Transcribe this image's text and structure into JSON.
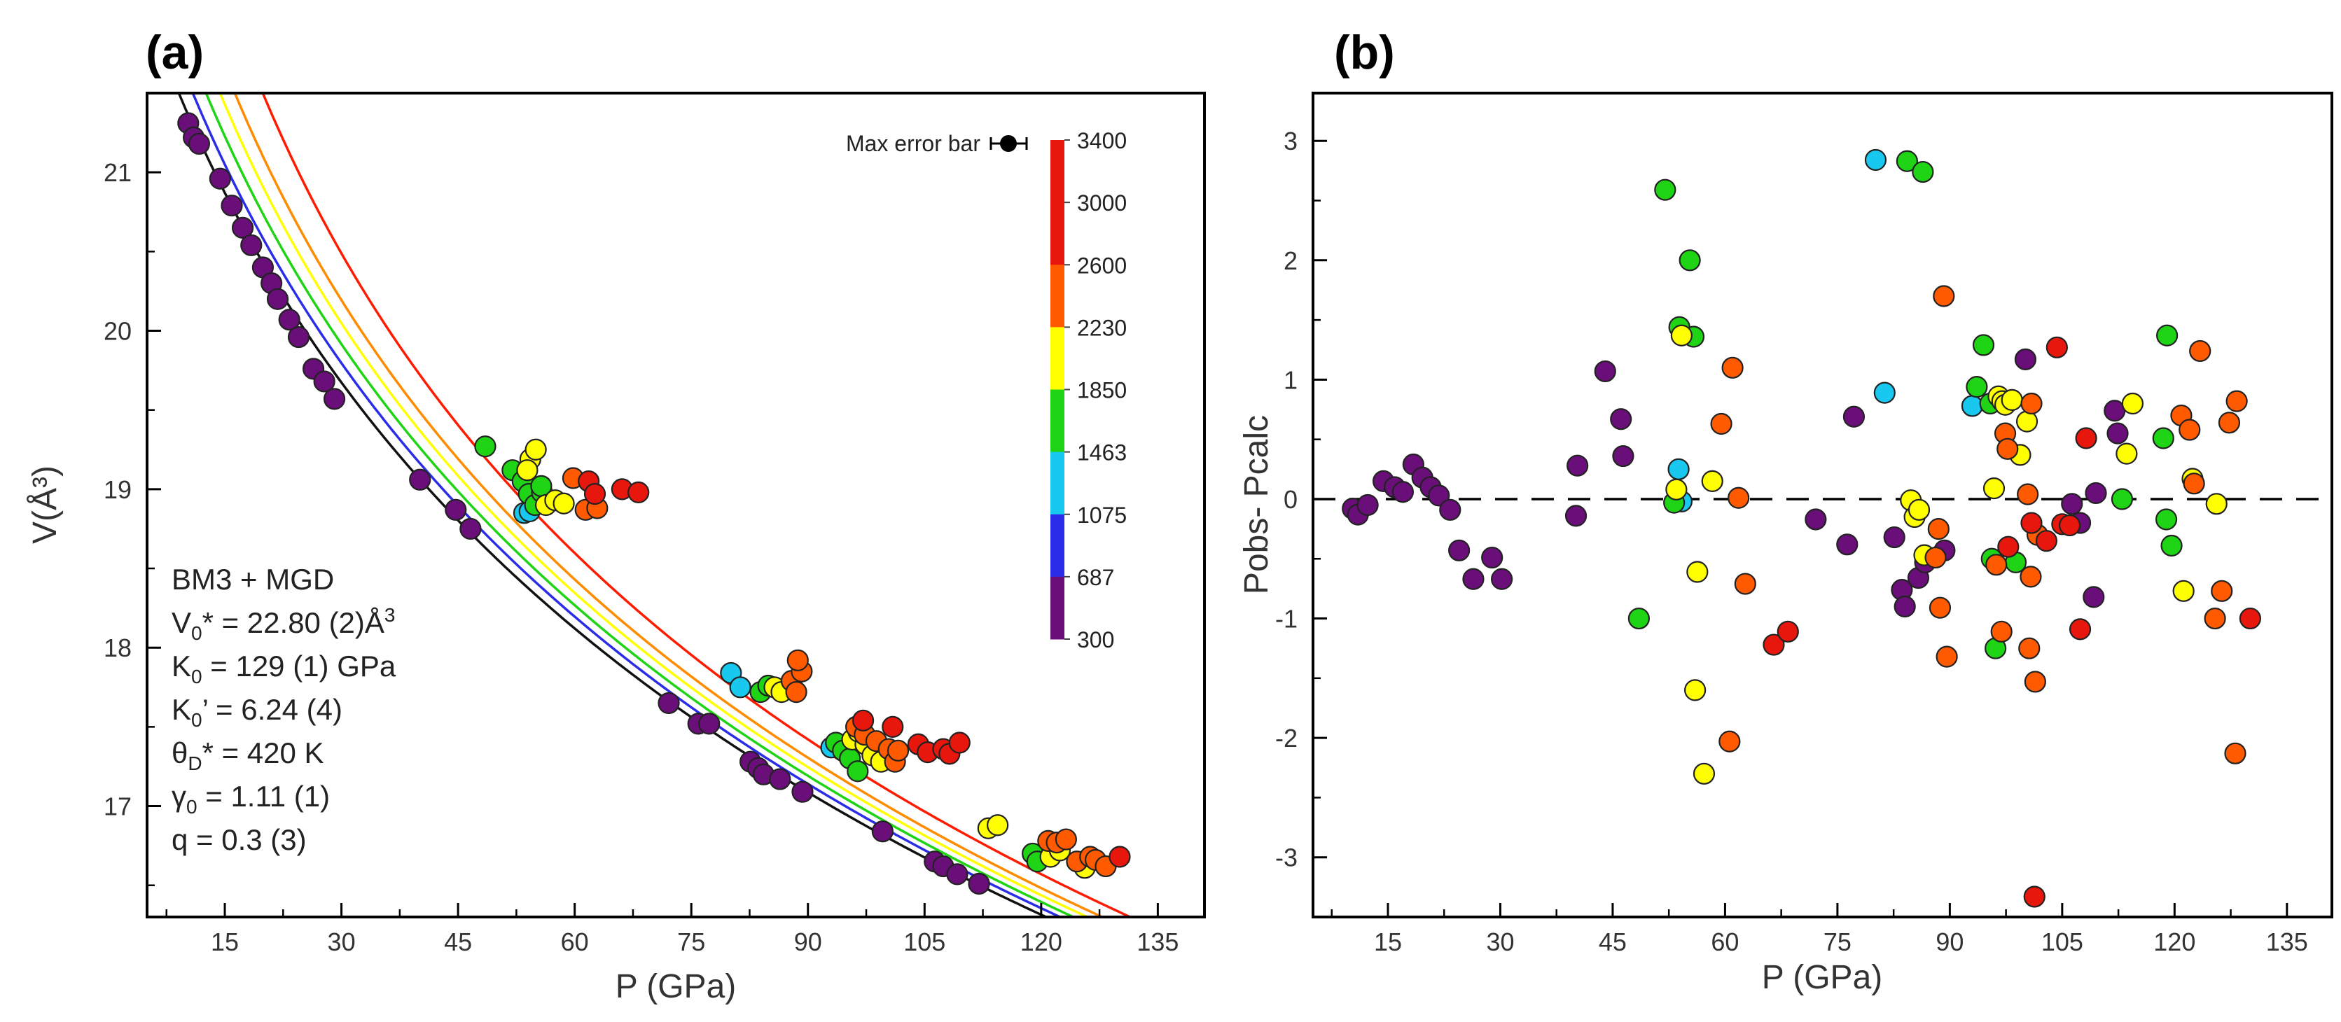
{
  "chart_data": [
    {
      "panel": "(a)",
      "type": "scatter",
      "xlabel": "P (GPa)",
      "ylabel": "V(Å³)",
      "xlim": [
        5,
        141
      ],
      "ylim": [
        16.3,
        21.5
      ],
      "xticks": [
        15,
        30,
        45,
        60,
        75,
        90,
        105,
        120,
        135
      ],
      "yticks": [
        17,
        18,
        19,
        20,
        21
      ],
      "legend": {
        "title": "Max error bar",
        "position": "top-right",
        "temperatures_K": [
          "3400",
          "3000",
          "2600",
          "2230",
          "1850",
          "1463",
          "1075",
          "687",
          "300"
        ],
        "colors": [
          "#e8170d",
          "#ff5a00",
          "#ffff00",
          "#1ed414",
          "#19c8ee",
          "#2a2ce8",
          "#6a0e7a"
        ]
      },
      "fit": {
        "lines": [
          "BM3 + MGD",
          "V",
          "0",
          "* = 22.80 (2)Å",
          "3",
          "K",
          "0",
          " = 129 (1) GPa",
          "K",
          "0",
          "’ = 6.24  (4)",
          "θ",
          "D",
          "* = 420 K",
          "γ",
          "0",
          " = 1.11 (1)",
          "q = 0.3 (3)"
        ],
        "V0": 22.8,
        "K0": 129,
        "K0p": 6.24
      },
      "isotherms": [
        {
          "T": 300,
          "color": "#111111",
          "p0": 0,
          "pmax": 141,
          "start": [
            10,
            21.32
          ],
          "dV_dP_start": -0.095
        },
        {
          "T": 1075,
          "color": "#2a2ce8",
          "p0": 1.8,
          "pmax": 141,
          "start": [
            15,
            21.5
          ]
        },
        {
          "T": 1463,
          "color": "#1ed414",
          "p0": 3.5,
          "pmax": 141
        },
        {
          "T": 1850,
          "color": "#ffff00",
          "p0": 5.3,
          "pmax": 141
        },
        {
          "T": 2230,
          "color": "#ff8c00",
          "p0": 7.2,
          "pmax": 141
        },
        {
          "T": 3400,
          "color": "#ff1a00",
          "p0": 10.8,
          "pmax": 141
        }
      ],
      "points": [
        [
          10.3,
          21.31,
          "#6a0e7a"
        ],
        [
          11.0,
          21.22,
          "#6a0e7a"
        ],
        [
          11.7,
          21.18,
          "#6a0e7a"
        ],
        [
          14.4,
          20.96,
          "#6a0e7a"
        ],
        [
          15.9,
          20.79,
          "#6a0e7a"
        ],
        [
          17.3,
          20.65,
          "#6a0e7a"
        ],
        [
          18.4,
          20.54,
          "#6a0e7a"
        ],
        [
          19.9,
          20.4,
          "#6a0e7a"
        ],
        [
          21.0,
          20.3,
          "#6a0e7a"
        ],
        [
          21.8,
          20.2,
          "#6a0e7a"
        ],
        [
          23.3,
          20.07,
          "#6a0e7a"
        ],
        [
          24.5,
          19.96,
          "#6a0e7a"
        ],
        [
          26.4,
          19.76,
          "#6a0e7a"
        ],
        [
          27.8,
          19.68,
          "#6a0e7a"
        ],
        [
          29.1,
          19.57,
          "#6a0e7a"
        ],
        [
          40.1,
          19.06,
          "#6a0e7a"
        ],
        [
          44.7,
          18.87,
          "#6a0e7a"
        ],
        [
          46.6,
          18.75,
          "#6a0e7a"
        ],
        [
          72.1,
          17.65,
          "#6a0e7a"
        ],
        [
          75.9,
          17.52,
          "#6a0e7a"
        ],
        [
          77.3,
          17.52,
          "#6a0e7a"
        ],
        [
          82.6,
          17.28,
          "#6a0e7a"
        ],
        [
          83.6,
          17.24,
          "#6a0e7a"
        ],
        [
          84.3,
          17.2,
          "#6a0e7a"
        ],
        [
          86.4,
          17.17,
          "#6a0e7a"
        ],
        [
          89.3,
          17.09,
          "#6a0e7a"
        ],
        [
          99.6,
          16.84,
          "#6a0e7a"
        ],
        [
          106.3,
          16.65,
          "#6a0e7a"
        ],
        [
          107.4,
          16.62,
          "#6a0e7a"
        ],
        [
          109.2,
          16.57,
          "#6a0e7a"
        ],
        [
          112.0,
          16.51,
          "#6a0e7a"
        ],
        [
          53.5,
          18.85,
          "#19c8ee"
        ],
        [
          54.2,
          18.86,
          "#19c8ee"
        ],
        [
          80.1,
          17.84,
          "#19c8ee"
        ],
        [
          81.3,
          17.75,
          "#19c8ee"
        ],
        [
          93.0,
          17.37,
          "#19c8ee"
        ],
        [
          48.5,
          19.27,
          "#1ed414"
        ],
        [
          52.0,
          19.12,
          "#1ed414"
        ],
        [
          53.3,
          19.05,
          "#1ed414"
        ],
        [
          54.1,
          18.97,
          "#1ed414"
        ],
        [
          54.9,
          18.9,
          "#1ed414"
        ],
        [
          55.8,
          18.98,
          "#1ed414"
        ],
        [
          56.6,
          18.92,
          "#1ed414"
        ],
        [
          55.7,
          19.02,
          "#1ed414"
        ],
        [
          83.9,
          17.72,
          "#1ed414"
        ],
        [
          84.9,
          17.76,
          "#1ed414"
        ],
        [
          93.6,
          17.4,
          "#1ed414"
        ],
        [
          94.5,
          17.35,
          "#1ed414"
        ],
        [
          95.4,
          17.3,
          "#1ed414"
        ],
        [
          96.4,
          17.22,
          "#1ed414"
        ],
        [
          97.6,
          17.42,
          "#1ed414"
        ],
        [
          98.8,
          17.36,
          "#1ed414"
        ],
        [
          118.9,
          16.7,
          "#1ed414"
        ],
        [
          119.5,
          16.65,
          "#1ed414"
        ],
        [
          54.3,
          19.19,
          "#ffff00"
        ],
        [
          55.0,
          19.25,
          "#ffff00"
        ],
        [
          56.3,
          18.9,
          "#ffff00"
        ],
        [
          57.5,
          18.93,
          "#ffff00"
        ],
        [
          58.6,
          18.91,
          "#ffff00"
        ],
        [
          53.9,
          19.12,
          "#ffff00"
        ],
        [
          85.7,
          17.75,
          "#ffff00"
        ],
        [
          86.6,
          17.72,
          "#ffff00"
        ],
        [
          95.7,
          17.42,
          "#ffff00"
        ],
        [
          96.5,
          17.47,
          "#ffff00"
        ],
        [
          97.4,
          17.39,
          "#ffff00"
        ],
        [
          98.3,
          17.32,
          "#ffff00"
        ],
        [
          99.4,
          17.28,
          "#ffff00"
        ],
        [
          113.2,
          16.86,
          "#ffff00"
        ],
        [
          114.4,
          16.88,
          "#ffff00"
        ],
        [
          121.2,
          16.68,
          "#ffff00"
        ],
        [
          122.4,
          16.72,
          "#ffff00"
        ],
        [
          125.6,
          16.61,
          "#ffff00"
        ],
        [
          59.8,
          19.07,
          "#ff5a00"
        ],
        [
          61.4,
          18.87,
          "#ff5a00"
        ],
        [
          62.9,
          18.88,
          "#ff5a00"
        ],
        [
          87.9,
          17.79,
          "#ff5a00"
        ],
        [
          88.5,
          17.72,
          "#ff5a00"
        ],
        [
          89.2,
          17.85,
          "#ff5a00"
        ],
        [
          88.7,
          17.92,
          "#ff5a00"
        ],
        [
          96.2,
          17.5,
          "#ff5a00"
        ],
        [
          97.3,
          17.45,
          "#ff5a00"
        ],
        [
          98.8,
          17.41,
          "#ff5a00"
        ],
        [
          100.4,
          17.36,
          "#ff5a00"
        ],
        [
          101.2,
          17.28,
          "#ff5a00"
        ],
        [
          101.6,
          17.35,
          "#ff5a00"
        ],
        [
          120.9,
          16.78,
          "#ff5a00"
        ],
        [
          122.0,
          16.77,
          "#ff5a00"
        ],
        [
          123.2,
          16.79,
          "#ff5a00"
        ],
        [
          124.6,
          16.65,
          "#ff5a00"
        ],
        [
          126.3,
          16.68,
          "#ff5a00"
        ],
        [
          127.0,
          16.66,
          "#ff5a00"
        ],
        [
          128.3,
          16.62,
          "#ff5a00"
        ],
        [
          61.8,
          19.05,
          "#e8170d"
        ],
        [
          62.6,
          18.97,
          "#e8170d"
        ],
        [
          66.1,
          19.0,
          "#e8170d"
        ],
        [
          68.2,
          18.98,
          "#e8170d"
        ],
        [
          97.1,
          17.54,
          "#e8170d"
        ],
        [
          100.9,
          17.5,
          "#e8170d"
        ],
        [
          104.2,
          17.39,
          "#e8170d"
        ],
        [
          105.4,
          17.34,
          "#e8170d"
        ],
        [
          107.4,
          17.36,
          "#e8170d"
        ],
        [
          108.2,
          17.33,
          "#e8170d"
        ],
        [
          109.5,
          17.4,
          "#e8170d"
        ],
        [
          130.1,
          16.68,
          "#e8170d"
        ]
      ]
    },
    {
      "panel": "(b)",
      "type": "scatter",
      "xlabel": "P (GPa)",
      "ylabel": "Pobs- Pcalc",
      "xlim": [
        5,
        141
      ],
      "ylim": [
        -3.5,
        3.4
      ],
      "xticks": [
        15,
        30,
        45,
        60,
        75,
        90,
        105,
        120,
        135
      ],
      "yticks": [
        -3,
        -2,
        -1,
        0,
        1,
        2,
        3
      ],
      "zero_line": "dashed",
      "points": [
        [
          10.3,
          -0.08,
          "#6a0e7a"
        ],
        [
          11.0,
          -0.13,
          "#6a0e7a"
        ],
        [
          12.3,
          -0.05,
          "#6a0e7a"
        ],
        [
          14.4,
          0.15,
          "#6a0e7a"
        ],
        [
          15.9,
          0.1,
          "#6a0e7a"
        ],
        [
          17.0,
          0.06,
          "#6a0e7a"
        ],
        [
          18.4,
          0.29,
          "#6a0e7a"
        ],
        [
          19.6,
          0.18,
          "#6a0e7a"
        ],
        [
          20.7,
          0.1,
          "#6a0e7a"
        ],
        [
          21.8,
          0.03,
          "#6a0e7a"
        ],
        [
          23.3,
          -0.09,
          "#6a0e7a"
        ],
        [
          24.5,
          -0.43,
          "#6a0e7a"
        ],
        [
          26.4,
          -0.67,
          "#6a0e7a"
        ],
        [
          28.9,
          -0.49,
          "#6a0e7a"
        ],
        [
          30.2,
          -0.67,
          "#6a0e7a"
        ],
        [
          40.1,
          -0.14,
          "#6a0e7a"
        ],
        [
          40.3,
          0.28,
          "#6a0e7a"
        ],
        [
          44.0,
          1.07,
          "#6a0e7a"
        ],
        [
          46.1,
          0.67,
          "#6a0e7a"
        ],
        [
          46.4,
          0.36,
          "#6a0e7a"
        ],
        [
          72.1,
          -0.17,
          "#6a0e7a"
        ],
        [
          76.3,
          -0.38,
          "#6a0e7a"
        ],
        [
          77.2,
          0.69,
          "#6a0e7a"
        ],
        [
          82.6,
          -0.32,
          "#6a0e7a"
        ],
        [
          83.6,
          -0.76,
          "#6a0e7a"
        ],
        [
          84.0,
          -0.9,
          "#6a0e7a"
        ],
        [
          85.8,
          -0.66,
          "#6a0e7a"
        ],
        [
          86.7,
          -0.53,
          "#6a0e7a"
        ],
        [
          89.3,
          -0.43,
          "#6a0e7a"
        ],
        [
          100.1,
          1.17,
          "#6a0e7a"
        ],
        [
          106.3,
          -0.04,
          "#6a0e7a"
        ],
        [
          107.4,
          -0.2,
          "#6a0e7a"
        ],
        [
          109.2,
          -0.82,
          "#6a0e7a"
        ],
        [
          109.5,
          0.05,
          "#6a0e7a"
        ],
        [
          112.0,
          0.74,
          "#6a0e7a"
        ],
        [
          112.4,
          0.55,
          "#6a0e7a"
        ],
        [
          53.8,
          0.25,
          "#19c8ee"
        ],
        [
          54.2,
          -0.02,
          "#19c8ee"
        ],
        [
          80.1,
          2.84,
          "#19c8ee"
        ],
        [
          81.3,
          0.89,
          "#19c8ee"
        ],
        [
          93.0,
          0.78,
          "#19c8ee"
        ],
        [
          48.5,
          -1.0,
          "#1ed414"
        ],
        [
          52.0,
          2.59,
          "#1ed414"
        ],
        [
          53.2,
          -0.03,
          "#1ed414"
        ],
        [
          53.9,
          1.44,
          "#1ed414"
        ],
        [
          55.3,
          2.0,
          "#1ed414"
        ],
        [
          55.8,
          1.36,
          "#1ed414"
        ],
        [
          84.3,
          2.83,
          "#1ed414"
        ],
        [
          86.4,
          2.74,
          "#1ed414"
        ],
        [
          93.6,
          0.94,
          "#1ed414"
        ],
        [
          94.5,
          1.29,
          "#1ed414"
        ],
        [
          95.4,
          0.8,
          "#1ed414"
        ],
        [
          95.6,
          -0.5,
          "#1ed414"
        ],
        [
          96.1,
          -1.25,
          "#1ed414"
        ],
        [
          98.8,
          -0.53,
          "#1ed414"
        ],
        [
          113.0,
          0.0,
          "#1ed414"
        ],
        [
          119.0,
          1.37,
          "#1ed414"
        ],
        [
          118.5,
          0.51,
          "#1ed414"
        ],
        [
          118.9,
          -0.17,
          "#1ed414"
        ],
        [
          119.6,
          -0.39,
          "#1ed414"
        ],
        [
          53.5,
          0.08,
          "#ffff00"
        ],
        [
          54.2,
          1.37,
          "#ffff00"
        ],
        [
          56.3,
          -0.61,
          "#ffff00"
        ],
        [
          56.0,
          -1.6,
          "#ffff00"
        ],
        [
          57.2,
          -2.3,
          "#ffff00"
        ],
        [
          58.3,
          0.15,
          "#ffff00"
        ],
        [
          84.8,
          -0.01,
          "#ffff00"
        ],
        [
          85.3,
          -0.15,
          "#ffff00"
        ],
        [
          85.9,
          -0.09,
          "#ffff00"
        ],
        [
          86.6,
          -0.47,
          "#ffff00"
        ],
        [
          95.9,
          0.09,
          "#ffff00"
        ],
        [
          96.5,
          0.86,
          "#ffff00"
        ],
        [
          97.0,
          0.82,
          "#ffff00"
        ],
        [
          97.4,
          0.79,
          "#ffff00"
        ],
        [
          98.3,
          0.83,
          "#ffff00"
        ],
        [
          99.4,
          0.37,
          "#ffff00"
        ],
        [
          100.3,
          0.65,
          "#ffff00"
        ],
        [
          113.6,
          0.38,
          "#ffff00"
        ],
        [
          114.4,
          0.8,
          "#ffff00"
        ],
        [
          121.2,
          -0.77,
          "#ffff00"
        ],
        [
          122.4,
          0.17,
          "#ffff00"
        ],
        [
          125.6,
          -0.04,
          "#ffff00"
        ],
        [
          59.5,
          0.63,
          "#ff5a00"
        ],
        [
          61.0,
          1.1,
          "#ff5a00"
        ],
        [
          61.8,
          0.01,
          "#ff5a00"
        ],
        [
          62.7,
          -0.71,
          "#ff5a00"
        ],
        [
          60.6,
          -2.03,
          "#ff5a00"
        ],
        [
          88.1,
          -0.49,
          "#ff5a00"
        ],
        [
          88.5,
          -0.25,
          "#ff5a00"
        ],
        [
          89.2,
          1.7,
          "#ff5a00"
        ],
        [
          88.7,
          -0.91,
          "#ff5a00"
        ],
        [
          89.6,
          -1.32,
          "#ff5a00"
        ],
        [
          96.2,
          -0.55,
          "#ff5a00"
        ],
        [
          96.9,
          -1.11,
          "#ff5a00"
        ],
        [
          97.4,
          0.55,
          "#ff5a00"
        ],
        [
          97.7,
          0.42,
          "#ff5a00"
        ],
        [
          100.4,
          0.04,
          "#ff5a00"
        ],
        [
          100.9,
          0.8,
          "#ff5a00"
        ],
        [
          101.4,
          -1.53,
          "#ff5a00"
        ],
        [
          100.6,
          -1.25,
          "#ff5a00"
        ],
        [
          101.7,
          -0.3,
          "#ff5a00"
        ],
        [
          100.8,
          -0.65,
          "#ff5a00"
        ],
        [
          120.9,
          0.7,
          "#ff5a00"
        ],
        [
          122.0,
          0.58,
          "#ff5a00"
        ],
        [
          122.6,
          0.13,
          "#ff5a00"
        ],
        [
          123.4,
          1.24,
          "#ff5a00"
        ],
        [
          125.4,
          -1.0,
          "#ff5a00"
        ],
        [
          126.3,
          -0.77,
          "#ff5a00"
        ],
        [
          127.3,
          0.64,
          "#ff5a00"
        ],
        [
          128.1,
          -2.13,
          "#ff5a00"
        ],
        [
          128.3,
          0.82,
          "#ff5a00"
        ],
        [
          66.5,
          -1.22,
          "#e8170d"
        ],
        [
          68.4,
          -1.11,
          "#e8170d"
        ],
        [
          97.8,
          -0.4,
          "#e8170d"
        ],
        [
          100.9,
          -0.2,
          "#e8170d"
        ],
        [
          101.3,
          -3.33,
          "#e8170d"
        ],
        [
          102.9,
          -0.35,
          "#e8170d"
        ],
        [
          104.3,
          1.27,
          "#e8170d"
        ],
        [
          105.0,
          -0.21,
          "#e8170d"
        ],
        [
          106.0,
          -0.22,
          "#e8170d"
        ],
        [
          107.4,
          -1.09,
          "#e8170d"
        ],
        [
          108.2,
          0.51,
          "#e8170d"
        ],
        [
          130.1,
          -1.0,
          "#e8170d"
        ]
      ]
    }
  ]
}
